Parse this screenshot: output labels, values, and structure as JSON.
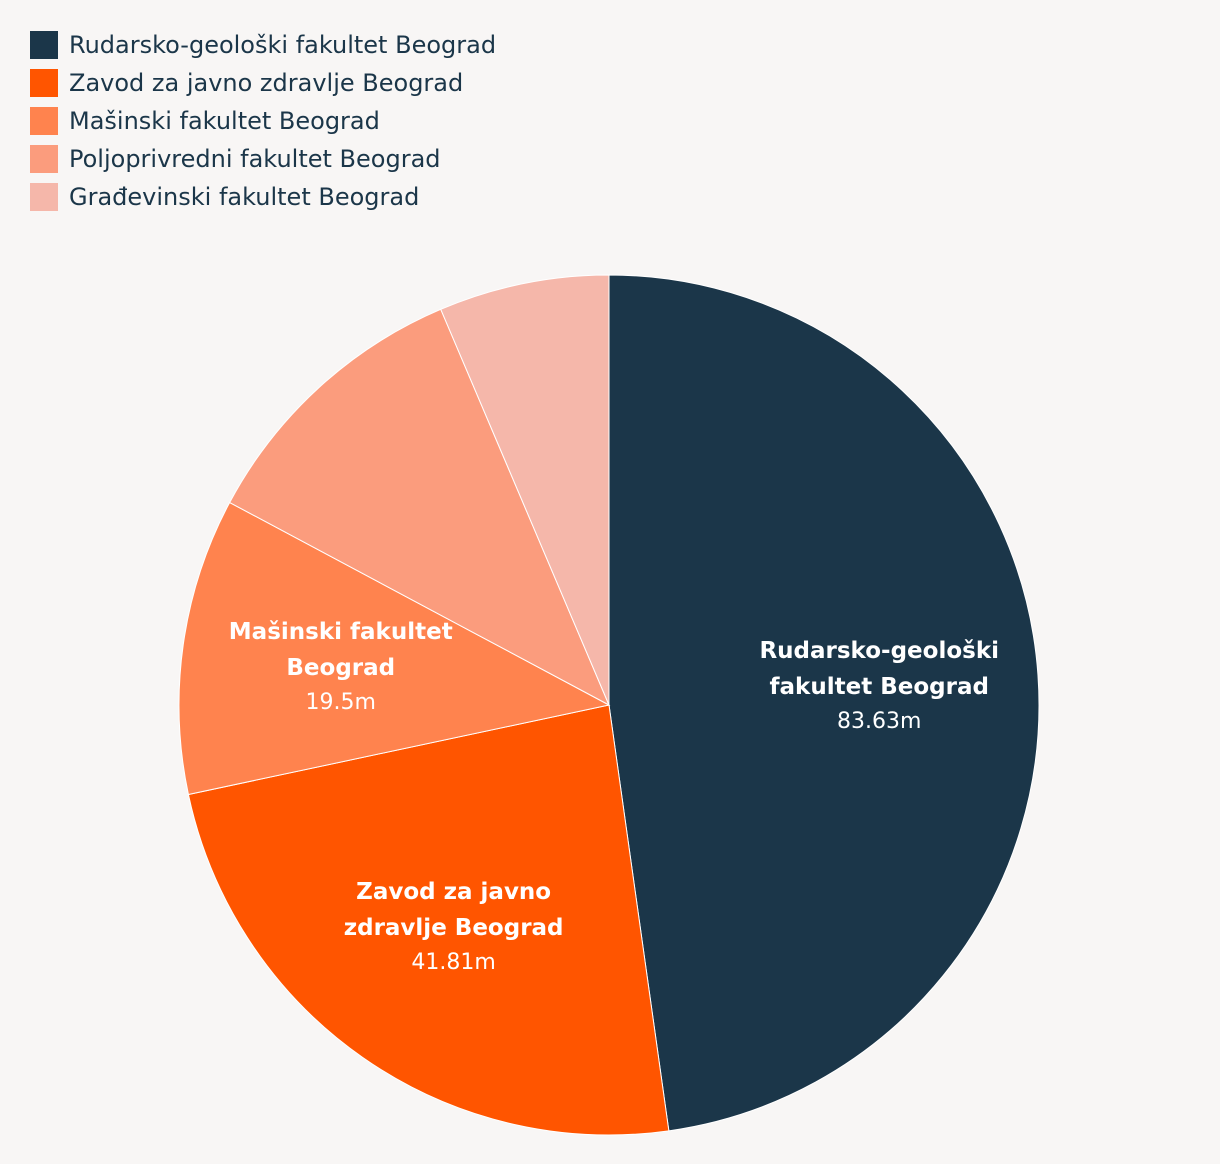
{
  "chart_data": {
    "type": "pie",
    "title": "",
    "unit_suffix": "m",
    "slices": [
      {
        "label": "Rudarsko-geološki fakultet Beograd",
        "value": 83.63,
        "value_label": "83.63m",
        "color": "#1b3649",
        "show_label": true,
        "label_lines": [
          "Rudarsko-geološki",
          "fakultet Beograd"
        ]
      },
      {
        "label": "Zavod za javno zdravlje Beograd",
        "value": 41.81,
        "value_label": "41.81m",
        "color": "#ff5500",
        "show_label": true,
        "label_lines": [
          "Zavod za javno",
          "zdravlje Beograd"
        ]
      },
      {
        "label": "Mašinski fakultet Beograd",
        "value": 19.5,
        "value_label": "19.5m",
        "color": "#ff834e",
        "show_label": true,
        "label_lines": [
          "Mašinski fakultet",
          "Beograd"
        ]
      },
      {
        "label": "Poljoprivredni fakultet Beograd",
        "value": 18.9,
        "value_label": "",
        "color": "#fb9c7d",
        "show_label": false,
        "label_lines": []
      },
      {
        "label": "Građevinski fakultet Beograd",
        "value": 11.2,
        "value_label": "",
        "color": "#f5b7aa",
        "show_label": false,
        "label_lines": []
      }
    ],
    "legend_position": "top-left"
  },
  "legend": {
    "items": [
      {
        "label": "Rudarsko-geološki fakultet Beograd",
        "color": "#1b3649"
      },
      {
        "label": "Zavod za javno zdravlje Beograd",
        "color": "#ff5500"
      },
      {
        "label": "Mašinski fakultet Beograd",
        "color": "#ff834e"
      },
      {
        "label": "Poljoprivredni fakultet Beograd",
        "color": "#fb9c7d"
      },
      {
        "label": "Građevinski fakultet Beograd",
        "color": "#f5b7aa"
      }
    ]
  }
}
